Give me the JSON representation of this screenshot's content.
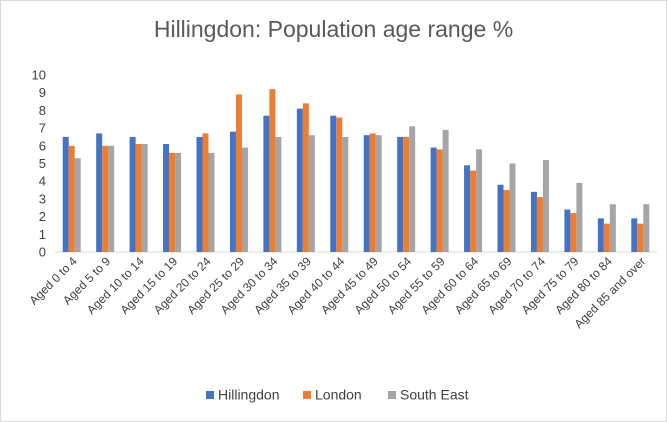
{
  "chart_data": {
    "type": "bar",
    "title": "Hillingdon: Population age range %",
    "xlabel": "",
    "ylabel": "",
    "ylim": [
      0,
      10
    ],
    "yticks": [
      0,
      1,
      2,
      3,
      4,
      5,
      6,
      7,
      8,
      9,
      10
    ],
    "grid": false,
    "legend_position": "bottom",
    "categories": [
      "Aged 0 to 4",
      "Aged 5 to 9",
      "Aged 10 to 14",
      "Aged 15 to 19",
      "Aged 20 to 24",
      "Aged 25 to 29",
      "Aged 30 to 34",
      "Aged 35 to 39",
      "Aged 40 to 44",
      "Aged 45 to 49",
      "Aged 50 to 54",
      "Aged 55 to 59",
      "Aged 60 to 64",
      "Aged 65 to 69",
      "Aged 70 to 74",
      "Aged 75 to 79",
      "Aged 80 to 84",
      "Aged 85 and over"
    ],
    "series": [
      {
        "name": "Hillingdon",
        "color": "#4472c4",
        "values": [
          6.5,
          6.7,
          6.5,
          6.1,
          6.5,
          6.8,
          7.7,
          8.1,
          7.7,
          6.6,
          6.5,
          5.9,
          4.9,
          3.8,
          3.4,
          2.4,
          1.9,
          1.9
        ]
      },
      {
        "name": "London",
        "color": "#ed7d31",
        "values": [
          6.0,
          6.0,
          6.1,
          5.6,
          6.7,
          8.9,
          9.2,
          8.4,
          7.6,
          6.7,
          6.5,
          5.8,
          4.6,
          3.5,
          3.1,
          2.2,
          1.6,
          1.6
        ]
      },
      {
        "name": "South East",
        "color": "#a5a5a5",
        "values": [
          5.3,
          6.0,
          6.1,
          5.6,
          5.6,
          5.9,
          6.5,
          6.6,
          6.5,
          6.6,
          7.1,
          6.9,
          5.8,
          5.0,
          5.2,
          3.9,
          2.7,
          2.7
        ]
      }
    ]
  }
}
